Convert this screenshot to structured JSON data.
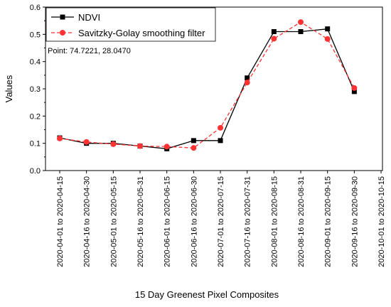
{
  "chart_data": {
    "type": "line",
    "xlabel": "15 Day Greenest Pixel Composites",
    "ylabel": "Values",
    "ylim": [
      0,
      0.6
    ],
    "yticks": [
      "0.0",
      "0.1",
      "0.2",
      "0.3",
      "0.4",
      "0.5",
      "0.6"
    ],
    "categories": [
      "2020-04-01 to 2020-04-15",
      "2020-04-16 to 2020-04-30",
      "2020-05-01 to 2020-05-15",
      "2020-05-16 to 2020-05-31",
      "2020-06-01 to 2020-06-15",
      "2020-06-16 to 2020-06-30",
      "2020-07-01 to 2020-07-15",
      "2020-07-16 to 2020-07-31",
      "2020-08-01 to 2020-08-15",
      "2020-08-16 to 2020-08-31",
      "2020-09-01 to 2020-09-15",
      "2020-09-16 to 2020-09-30",
      "2020-10-01 to 2020-10-15"
    ],
    "series": [
      {
        "name": "NDVI",
        "color": "#000000",
        "marker": "square",
        "line": "solid",
        "values": [
          0.12,
          0.1,
          0.1,
          0.09,
          0.08,
          0.11,
          0.11,
          0.34,
          0.51,
          0.51,
          0.52,
          0.29,
          null
        ]
      },
      {
        "name": "Savitzky-Golay smoothing filter",
        "color": "#ff3333",
        "marker": "circle",
        "line": "dashed",
        "values": [
          0.118,
          0.105,
          0.097,
          0.09,
          0.088,
          0.083,
          0.157,
          0.323,
          0.484,
          0.545,
          0.483,
          0.303,
          null
        ]
      }
    ],
    "annotation": "Point: 74.7221, 28.0470",
    "legend_position": "top-left",
    "grid": false
  }
}
